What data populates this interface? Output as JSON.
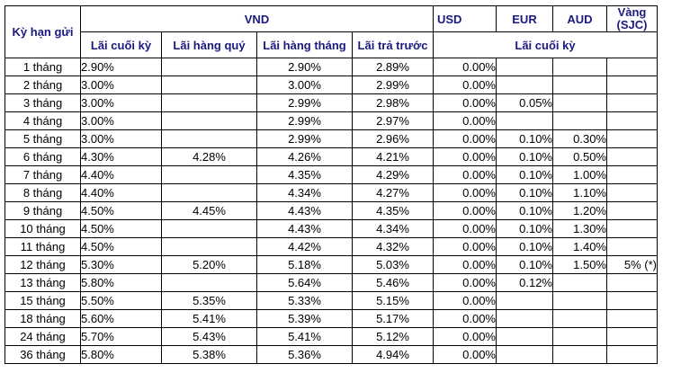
{
  "header": {
    "term": "Kỳ hạn gửi",
    "vnd": "VND",
    "usd": "USD",
    "eur": "EUR",
    "aud": "AUD",
    "gold_line1": "Vàng",
    "gold_line2": "(SJC)",
    "vnd_end": "Lãi cuối kỳ",
    "vnd_quarterly": "Lãi hàng quý",
    "vnd_monthly": "Lãi hàng tháng",
    "vnd_prepaid": "Lãi trả trước",
    "foreign_end": "Lãi cuối kỳ"
  },
  "rows": [
    {
      "term": "1 tháng",
      "end": "2.90%",
      "quarterly": "",
      "monthly": "2.90%",
      "prepaid": "2.89%",
      "usd": "0.00%",
      "eur": "",
      "aud": "",
      "gold": ""
    },
    {
      "term": "2 tháng",
      "end": "3.00%",
      "quarterly": "",
      "monthly": "3.00%",
      "prepaid": "2.99%",
      "usd": "0.00%",
      "eur": "",
      "aud": "",
      "gold": ""
    },
    {
      "term": "3 tháng",
      "end": "3.00%",
      "quarterly": "",
      "monthly": "2.99%",
      "prepaid": "2.98%",
      "usd": "0.00%",
      "eur": "0.05%",
      "aud": "",
      "gold": ""
    },
    {
      "term": "4 tháng",
      "end": "3.00%",
      "quarterly": "",
      "monthly": "2.99%",
      "prepaid": "2.97%",
      "usd": "0.00%",
      "eur": "",
      "aud": "",
      "gold": ""
    },
    {
      "term": "5 tháng",
      "end": "3.00%",
      "quarterly": "",
      "monthly": "2.99%",
      "prepaid": "2.96%",
      "usd": "0.00%",
      "eur": "0.10%",
      "aud": "0.30%",
      "gold": ""
    },
    {
      "term": "6 tháng",
      "end": "4.30%",
      "quarterly": "4.28%",
      "monthly": "4.26%",
      "prepaid": "4.21%",
      "usd": "0.00%",
      "eur": "0.10%",
      "aud": "0.50%",
      "gold": ""
    },
    {
      "term": "7 tháng",
      "end": "4.40%",
      "quarterly": "",
      "monthly": "4.35%",
      "prepaid": "4.29%",
      "usd": "0.00%",
      "eur": "0.10%",
      "aud": "1.00%",
      "gold": ""
    },
    {
      "term": "8 tháng",
      "end": "4.40%",
      "quarterly": "",
      "monthly": "4.34%",
      "prepaid": "4.27%",
      "usd": "0.00%",
      "eur": "0.10%",
      "aud": "1.10%",
      "gold": ""
    },
    {
      "term": "9 tháng",
      "end": "4.50%",
      "quarterly": "4.45%",
      "monthly": "4.43%",
      "prepaid": "4.35%",
      "usd": "0.00%",
      "eur": "0.10%",
      "aud": "1.20%",
      "gold": ""
    },
    {
      "term": "10 tháng",
      "end": "4.50%",
      "quarterly": "",
      "monthly": "4.43%",
      "prepaid": "4.34%",
      "usd": "0.00%",
      "eur": "0.10%",
      "aud": "1.30%",
      "gold": ""
    },
    {
      "term": "11 tháng",
      "end": "4.50%",
      "quarterly": "",
      "monthly": "4.42%",
      "prepaid": "4.32%",
      "usd": "0.00%",
      "eur": "0.10%",
      "aud": "1.40%",
      "gold": ""
    },
    {
      "term": "12 tháng",
      "end": "5.30%",
      "quarterly": "5.20%",
      "monthly": "5.18%",
      "prepaid": "5.03%",
      "usd": "0.00%",
      "eur": "0.10%",
      "aud": "1.50%",
      "gold": "5% (*)"
    },
    {
      "term": "13 tháng",
      "end": "5.80%",
      "quarterly": "",
      "monthly": "5.64%",
      "prepaid": "5.46%",
      "usd": "0.00%",
      "eur": "0.12%",
      "aud": "",
      "gold": ""
    },
    {
      "term": "15 tháng",
      "end": "5.50%",
      "quarterly": "5.35%",
      "monthly": "5.33%",
      "prepaid": "5.15%",
      "usd": "0.00%",
      "eur": "",
      "aud": "",
      "gold": ""
    },
    {
      "term": "18 tháng",
      "end": "5.60%",
      "quarterly": "5.41%",
      "monthly": "5.39%",
      "prepaid": "5.17%",
      "usd": "0.00%",
      "eur": "",
      "aud": "",
      "gold": ""
    },
    {
      "term": "24 tháng",
      "end": "5.70%",
      "quarterly": "5.43%",
      "monthly": "5.41%",
      "prepaid": "5.12%",
      "usd": "0.00%",
      "eur": "",
      "aud": "",
      "gold": ""
    },
    {
      "term": "36 tháng",
      "end": "5.80%",
      "quarterly": "5.38%",
      "monthly": "5.36%",
      "prepaid": "4.94%",
      "usd": "0.00%",
      "eur": "",
      "aud": "",
      "gold": ""
    }
  ]
}
